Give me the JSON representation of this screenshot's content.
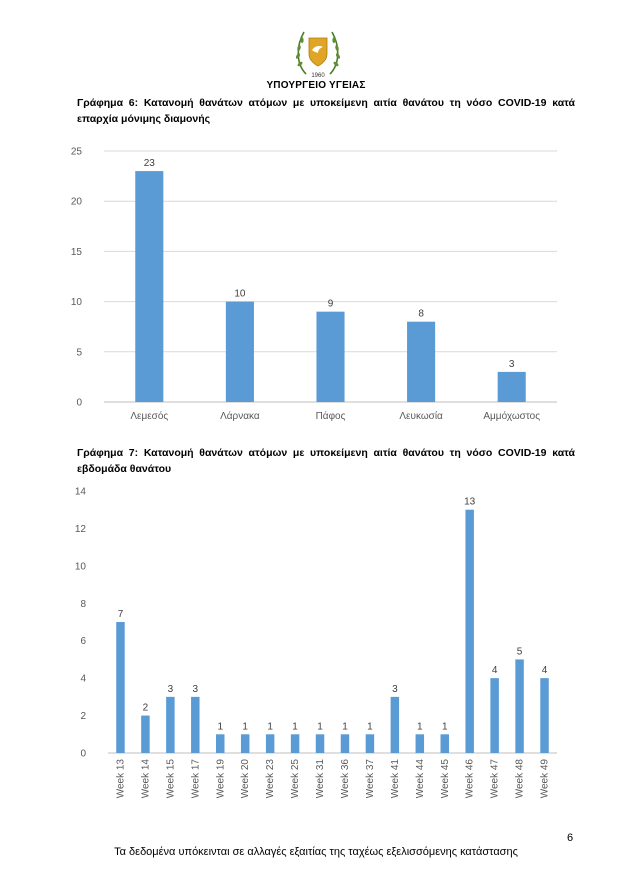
{
  "header": {
    "ministry": "ΥΠΟΥΡΓΕΙΟ ΥΓΕΙΑΣ",
    "emblem_icon": "cyprus-coat-of-arms-icon"
  },
  "figure6": {
    "caption": "Γράφημα 6: Κατανομή θανάτων ατόμων με υποκείμενη αιτία θανάτου τη νόσο COVID-19 κατά επαρχία μόνιμης διαμονής"
  },
  "figure7": {
    "caption": "Γράφημα 7: Κατανομή θανάτων ατόμων με υποκείμενη αιτία θανάτου τη νόσο COVID-19 κατά εβδομάδα θανάτου"
  },
  "chart_data": [
    {
      "type": "bar",
      "categories": [
        "Λεμεσός",
        "Λάρνακα",
        "Πάφος",
        "Λευκωσία",
        "Αμμόχωστος"
      ],
      "values": [
        23,
        10,
        9,
        8,
        3
      ],
      "ylim": [
        0,
        25
      ],
      "yticks": [
        0,
        5,
        10,
        15,
        20,
        25
      ],
      "grid": true,
      "data_labels": true,
      "color": "#5b9bd5"
    },
    {
      "type": "bar",
      "categories": [
        "Week 13",
        "Week 14",
        "Week 15",
        "Week 17",
        "Week 19",
        "Week 20",
        "Week 23",
        "Week 25",
        "Week 31",
        "Week 36",
        "Week 37",
        "Week 41",
        "Week 44",
        "Week 45",
        "Week 46",
        "Week 47",
        "Week 48",
        "Week 49"
      ],
      "values": [
        7,
        2,
        3,
        3,
        1,
        1,
        1,
        1,
        1,
        1,
        1,
        3,
        1,
        1,
        13,
        4,
        5,
        4
      ],
      "ylim": [
        0,
        14
      ],
      "yticks": [
        0,
        2,
        4,
        6,
        8,
        10,
        12,
        14
      ],
      "grid": false,
      "data_labels": true,
      "color": "#5b9bd5"
    }
  ],
  "footer": {
    "note": "Τα δεδομένα υπόκεινται σε αλλαγές εξαιτίας της ταχέως εξελισσόμενης κατάστασης",
    "page_number": "6"
  }
}
